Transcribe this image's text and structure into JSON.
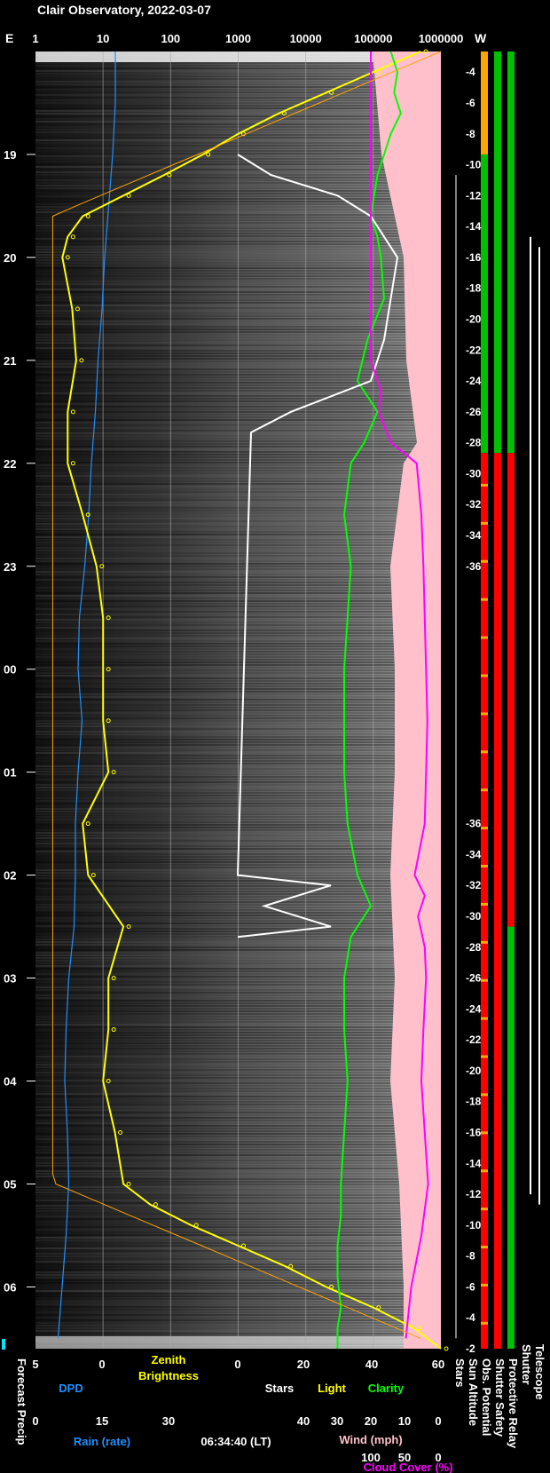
{
  "header": {
    "title": "Clair Observatory, 2022-03-07"
  },
  "chart_data": {
    "type": "line",
    "title": "Clair Observatory, 2022-03-07",
    "time_axis": {
      "labels": [
        "19",
        "20",
        "21",
        "22",
        "23",
        "00",
        "01",
        "02",
        "03",
        "04",
        "05",
        "06"
      ],
      "start_hour": 18.0,
      "end_hour": 30.6,
      "timestamp": "06:34:40 (LT)"
    },
    "top_axis": {
      "left_label": "E",
      "right_label": "W",
      "ticks": [
        "1",
        "10",
        "100",
        "1000",
        "10000",
        "100000",
        "1000000"
      ],
      "scale": "log"
    },
    "sun_altitude_labels": {
      "evening": [
        -4,
        -6,
        -8,
        -10,
        -12,
        -14,
        -16,
        -18,
        -20,
        -22,
        -24,
        -26,
        -28,
        -30,
        -32,
        -34,
        -36
      ],
      "morning": [
        -36,
        -34,
        -32,
        -30,
        -28,
        -26,
        -24,
        -22,
        -20,
        -18,
        -16,
        -14,
        -12,
        -10,
        -8,
        -6,
        -4,
        -2
      ]
    },
    "bottom_axes": {
      "dpd": {
        "ticks": [
          "5",
          "0"
        ],
        "label": "DPD",
        "color": "#1e90ff"
      },
      "zenith": {
        "ticks": [
          "0"
        ],
        "label": "Zenith Brightness",
        "color": "#ffff00"
      },
      "stars": {
        "ticks": [
          "0",
          "20"
        ],
        "label": "Stars",
        "color": "#ffffff"
      },
      "light_clarity": {
        "ticks": [
          "40",
          "60"
        ],
        "light_label": "Light",
        "clarity_label": "Clarity",
        "light_color": "#ffff00",
        "clarity_color": "#00ff00"
      },
      "rain": {
        "ticks": [
          "0",
          "15",
          "30"
        ],
        "label": "Rain (rate)",
        "color": "#1e90ff"
      },
      "wind": {
        "ticks": [
          "40",
          "30",
          "20",
          "10",
          "0"
        ],
        "label": "Wind (mph)",
        "color": "#ffc0cb"
      },
      "cloud": {
        "ticks": [
          "100",
          "50",
          "0"
        ],
        "label": "Cloud Cover (%)",
        "color": "#ff00ff"
      }
    },
    "vertical_labels": [
      "Forecast Precip",
      "Stars",
      "Sun Altitude",
      "Obs. Potential",
      "Shutter Safety",
      "Protective Relay",
      "Shutter",
      "Telescope"
    ],
    "series": [
      {
        "name": "DPD",
        "color": "#1e90ff",
        "hours": [
          18.0,
          18.5,
          19.0,
          19.5,
          20.0,
          20.5,
          21.0,
          21.5,
          22.0,
          22.5,
          23.0,
          23.5,
          24.0,
          24.5,
          25.0,
          25.5,
          26.0,
          26.5,
          27.0,
          27.5,
          28.0,
          28.5,
          29.0,
          29.5,
          30.0,
          30.5
        ],
        "values": [
          -1.0,
          -1.0,
          -0.8,
          -0.5,
          -0.2,
          0.0,
          0.3,
          0.5,
          0.8,
          1.0,
          1.3,
          1.7,
          1.8,
          1.5,
          1.8,
          2.0,
          2.0,
          2.1,
          2.5,
          2.7,
          2.8,
          2.6,
          2.5,
          2.7,
          3.0,
          3.3
        ]
      },
      {
        "name": "Zenith Brightness",
        "color": "#ffff00",
        "hours": [
          18.0,
          18.2,
          18.4,
          18.6,
          18.8,
          19.0,
          19.2,
          19.4,
          19.6,
          19.8,
          20.0,
          20.5,
          21.0,
          21.5,
          22.0,
          22.5,
          23.0,
          23.5,
          24.0,
          24.5,
          25.0,
          25.5,
          26.0,
          26.5,
          27.0,
          27.5,
          28.0,
          28.5,
          29.0,
          29.2,
          29.4,
          29.6,
          29.8,
          30.0,
          30.2,
          30.4,
          30.6
        ],
        "values": [
          500000,
          100000,
          20000,
          4000,
          1000,
          300,
          80,
          20,
          5,
          3,
          2.5,
          3.5,
          4,
          3,
          3,
          5,
          8,
          10,
          10,
          10,
          12,
          5,
          6,
          20,
          12,
          12,
          10,
          15,
          20,
          50,
          200,
          1000,
          5000,
          20000,
          100000,
          400000,
          1000000
        ]
      },
      {
        "name": "Clarity",
        "color": "#00ff00",
        "hours": [
          18.0,
          18.2,
          18.4,
          18.6,
          18.8,
          19.0,
          19.2,
          19.4,
          19.6,
          19.8,
          20.0,
          20.4,
          20.8,
          21.2,
          21.5,
          21.8,
          22.0,
          22.5,
          23.0,
          23.5,
          24.0,
          24.5,
          25.0,
          25.5,
          26.0,
          26.3,
          26.6,
          27.0,
          27.5,
          28.0,
          28.5,
          29.0,
          29.3,
          29.6,
          29.9,
          30.2,
          30.4,
          30.6
        ],
        "values": [
          46,
          48,
          47,
          49,
          46,
          44,
          42,
          41,
          40,
          42,
          43,
          44,
          39,
          36,
          42,
          38,
          34,
          32,
          34,
          33,
          32,
          32,
          32,
          33,
          36,
          40,
          34,
          32,
          32,
          33,
          32,
          31,
          31,
          30,
          30,
          31,
          30,
          30
        ]
      },
      {
        "name": "Stars",
        "color": "#ffffff",
        "hours": [
          19.0,
          19.2,
          19.4,
          19.6,
          19.8,
          20.0,
          20.4,
          20.8,
          21.2,
          21.5,
          21.7,
          26.0,
          26.1,
          26.3,
          26.5,
          26.6
        ],
        "values": [
          0,
          5,
          15,
          20,
          22,
          24,
          23,
          22,
          20,
          8,
          2,
          0,
          14,
          4,
          14,
          0
        ]
      },
      {
        "name": "Cloud Cover",
        "color": "#ff00ff",
        "hours": [
          18.0,
          18.5,
          19.0,
          19.5,
          20.0,
          20.5,
          21.0,
          21.3,
          21.5,
          21.8,
          22.0,
          22.5,
          23.0,
          23.5,
          24.0,
          24.5,
          25.0,
          25.5,
          26.0,
          26.2,
          26.4,
          26.7,
          27.0,
          27.5,
          28.0,
          28.5,
          29.0,
          29.5,
          30.0,
          30.5
        ],
        "values": [
          100,
          100,
          100,
          100,
          100,
          100,
          100,
          85,
          88,
          70,
          32,
          25,
          22,
          20,
          18,
          16,
          18,
          20,
          35,
          20,
          30,
          20,
          18,
          22,
          25,
          20,
          15,
          25,
          40,
          48
        ]
      }
    ],
    "status_bars": [
      {
        "name": "Obs. Potential",
        "segments": [
          [
            18.0,
            19.0,
            "#ffa500"
          ],
          [
            19.0,
            21.9,
            "#00c000"
          ],
          [
            21.9,
            30.6,
            "#ff0000"
          ]
        ]
      },
      {
        "name": "Shutter Safety",
        "segments": [
          [
            18.0,
            21.9,
            "#00c000"
          ],
          [
            21.9,
            30.6,
            "#ff0000"
          ]
        ]
      },
      {
        "name": "Protective Relay",
        "segments": [
          [
            18.0,
            21.9,
            "#00c000"
          ],
          [
            21.9,
            26.5,
            "#ff0000"
          ],
          [
            26.5,
            30.6,
            "#00c000"
          ]
        ]
      }
    ]
  }
}
